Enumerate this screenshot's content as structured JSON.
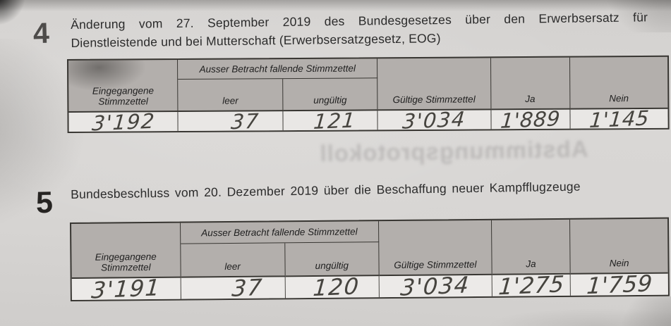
{
  "document": {
    "ghost_text": "Abstimmungsprotokoll",
    "sections": [
      {
        "number": "4",
        "title_lines": [
          "Änderung vom 27. September 2019 des Bundesgesetzes über den Erwerbsersatz für",
          "Dienstleistende und bei Mutterschaft (Erwerbsersatzgesetz, EOG)"
        ],
        "table": {
          "headers": {
            "eingegangene": "Eingegangene Stimmzettel",
            "ausser_betracht": "Ausser Betracht fallende Stimmzettel",
            "leer": "leer",
            "ungueltig": "ungültig",
            "gueltige": "Gültige Stimmzettel",
            "ja": "Ja",
            "nein": "Nein"
          },
          "values": {
            "eingegangene": "3'192",
            "leer": "37",
            "ungueltig": "121",
            "gueltige": "3'034",
            "ja": "1'889",
            "nein": "1'145"
          }
        }
      },
      {
        "number": "5",
        "title_lines": [
          "Bundesbeschluss vom 20. Dezember 2019 über die Beschaffung neuer Kampfflugzeuge"
        ],
        "table": {
          "headers": {
            "eingegangene": "Eingegangene Stimmzettel",
            "ausser_betracht": "Ausser Betracht fallende Stimmzettel",
            "leer": "leer",
            "ungueltig": "ungültig",
            "gueltige": "Gültige Stimmzettel",
            "ja": "Ja",
            "nein": "Nein"
          },
          "values": {
            "eingegangene": "3'191",
            "leer": "37",
            "ungueltig": "120",
            "gueltige": "3'034",
            "ja": "1'275",
            "nein": "1'759"
          }
        }
      }
    ]
  },
  "colors": {
    "paper": "#d6d4d2",
    "table_header_fill": "#b3afac",
    "table_data_fill": "#eae8e6",
    "printed_ink": "#2b2b2b",
    "pencil": "#46443f"
  }
}
